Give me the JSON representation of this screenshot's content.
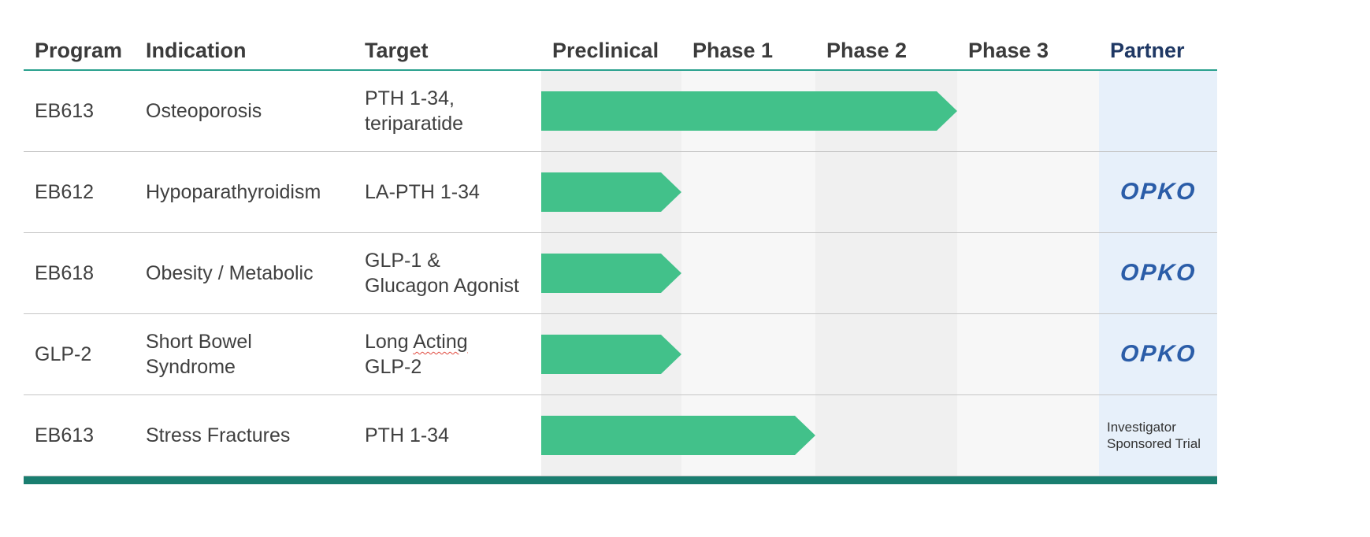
{
  "colors": {
    "arrow_green": "#42c18a",
    "header_rule": "#2aa18e",
    "bottom_bar": "#1a7e70",
    "partner_band": "#e7f0fa",
    "band_dark": "#f0f0f0",
    "band_light": "#f7f7f7",
    "partner_header_text": "#1f3864",
    "header_text": "#3b3b3b",
    "body_text": "#404040",
    "opko_blue": "#2b5da8",
    "row_divider": "#c6c6c6",
    "squiggle_red": "#e04a3f"
  },
  "header": {
    "columns": [
      "Program",
      "Indication",
      "Target",
      "Preclinical",
      "Phase 1",
      "Phase 2",
      "Phase 3",
      "Partner"
    ]
  },
  "rows": [
    {
      "program": "EB613",
      "indication_lines": [
        "Osteoporosis"
      ],
      "target_lines": [
        "PTH 1-34,",
        "teriparatide"
      ],
      "phases_completed": 3,
      "partner": null
    },
    {
      "program": "EB612",
      "indication_lines": [
        "Hypoparathyroidism"
      ],
      "target_lines": [
        "LA-PTH 1-34"
      ],
      "phases_completed": 1,
      "partner": {
        "type": "logo",
        "label": "OPKO"
      }
    },
    {
      "program": "EB618",
      "indication_lines": [
        "Obesity / Metabolic"
      ],
      "target_lines": [
        "GLP-1 &",
        "Glucagon Agonist"
      ],
      "phases_completed": 1,
      "partner": {
        "type": "logo",
        "label": "OPKO"
      }
    },
    {
      "program": "GLP-2",
      "indication_lines": [
        "Short Bowel",
        "Syndrome"
      ],
      "target_lines": [
        "Long Acting",
        "GLP-2"
      ],
      "squiggle_word": "Acting",
      "phases_completed": 1,
      "partner": {
        "type": "logo",
        "label": "OPKO"
      }
    },
    {
      "program": "EB613",
      "indication_lines": [
        "Stress Fractures"
      ],
      "target_lines": [
        "PTH 1-34"
      ],
      "phases_completed": 2,
      "partner": {
        "type": "text",
        "lines": [
          "Investigator",
          "Sponsored Trial"
        ],
        "label": "Investigator Sponsored Trial"
      }
    }
  ],
  "chart_data": {
    "type": "table",
    "title": "Clinical development pipeline",
    "columns": [
      "Program",
      "Indication",
      "Target",
      "Preclinical",
      "Phase 1",
      "Phase 2",
      "Phase 3",
      "Partner"
    ],
    "phase_columns": [
      "Preclinical",
      "Phase 1",
      "Phase 2",
      "Phase 3"
    ],
    "bar_color": "#42c18a",
    "rows": [
      {
        "program": "EB613",
        "indication": "Osteoporosis",
        "target": "PTH 1-34, teriparatide",
        "phases_completed": 3,
        "progress": "through end of Phase 2",
        "partner": ""
      },
      {
        "program": "EB612",
        "indication": "Hypoparathyroidism",
        "target": "LA-PTH 1-34",
        "phases_completed": 1,
        "progress": "through end of Preclinical",
        "partner": "OPKO"
      },
      {
        "program": "EB618",
        "indication": "Obesity / Metabolic",
        "target": "GLP-1 & Glucagon Agonist",
        "phases_completed": 1,
        "progress": "through end of Preclinical",
        "partner": "OPKO"
      },
      {
        "program": "GLP-2",
        "indication": "Short Bowel Syndrome",
        "target": "Long Acting GLP-2",
        "phases_completed": 1,
        "progress": "through end of Preclinical",
        "partner": "OPKO"
      },
      {
        "program": "EB613",
        "indication": "Stress Fractures",
        "target": "PTH 1-34",
        "phases_completed": 2,
        "progress": "through end of Phase 1",
        "partner": "Investigator Sponsored Trial"
      }
    ]
  }
}
